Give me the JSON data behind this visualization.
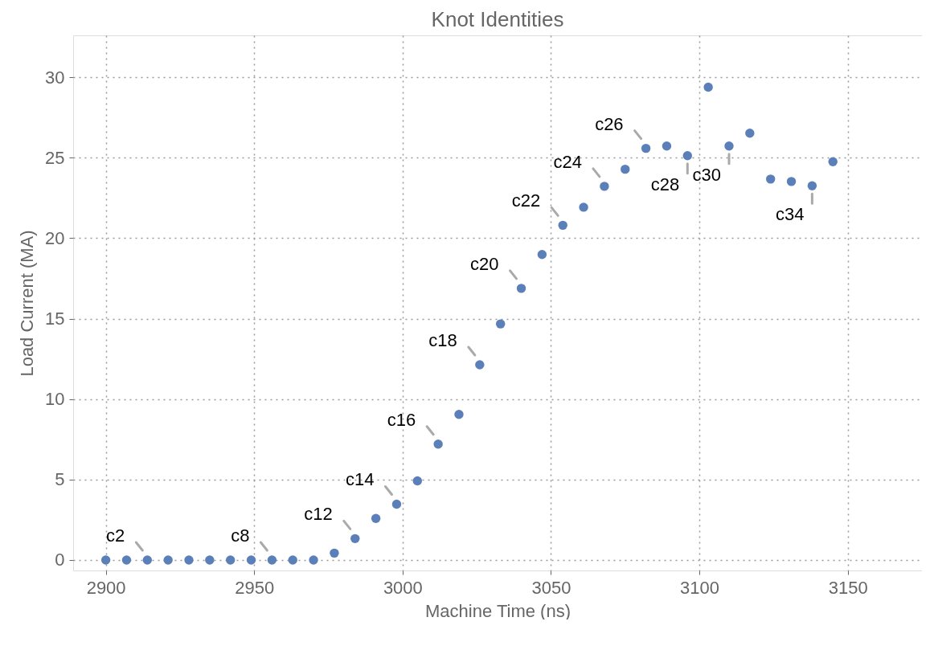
{
  "chart_data": {
    "type": "scatter",
    "title": "Knot Identities",
    "xlabel": "Machine Time (ns)",
    "ylabel": "Load Current (MA)",
    "x": [
      2900,
      2907,
      2914,
      2921,
      2928,
      2935,
      2942,
      2949,
      2956,
      2963,
      2970,
      2977,
      2984,
      2991,
      2998,
      3005,
      3012,
      3019,
      3026,
      3033,
      3040,
      3047,
      3054,
      3061,
      3068,
      3075,
      3082,
      3089,
      3096,
      3103,
      3110,
      3117,
      3124,
      3131,
      3138,
      3145
    ],
    "series": [
      {
        "color": "#5b7fb8",
        "values": [
          0,
          0,
          0,
          0,
          0,
          0,
          0,
          0,
          0,
          0,
          0,
          0.43,
          1.33,
          2.58,
          3.47,
          4.92,
          7.2,
          9.05,
          12.13,
          14.67,
          16.88,
          18.98,
          20.8,
          21.92,
          23.22,
          24.28,
          25.58,
          25.72,
          25.12,
          29.38,
          25.72,
          26.52,
          23.67,
          23.52,
          23.25,
          24.75
        ]
      }
    ],
    "xlim": [
      2889,
      3175
    ],
    "ylim": [
      -0.65,
      32.6
    ],
    "xticks": [
      2900,
      2950,
      3000,
      3050,
      3100,
      3150
    ],
    "yticks": [
      0,
      5,
      10,
      15,
      20,
      25,
      30
    ],
    "grid": true,
    "marker": "circle",
    "annotations": [
      {
        "text": "c2",
        "x": 2914,
        "y": 0
      },
      {
        "text": "c8",
        "x": 2956,
        "y": 0
      },
      {
        "text": "c12",
        "x": 2984,
        "y": 1.33
      },
      {
        "text": "c14",
        "x": 2998,
        "y": 3.47
      },
      {
        "text": "c16",
        "x": 3012,
        "y": 7.2
      },
      {
        "text": "c18",
        "x": 3026,
        "y": 12.13
      },
      {
        "text": "c20",
        "x": 3040,
        "y": 16.88
      },
      {
        "text": "c22",
        "x": 3054,
        "y": 20.8
      },
      {
        "text": "c24",
        "x": 3068,
        "y": 23.22
      },
      {
        "text": "c26",
        "x": 3082,
        "y": 25.58
      },
      {
        "text": "c28",
        "x": 3096,
        "y": 25.12
      },
      {
        "text": "c30",
        "x": 3110,
        "y": 25.72
      },
      {
        "text": "c34",
        "x": 3138,
        "y": 23.25
      }
    ]
  }
}
